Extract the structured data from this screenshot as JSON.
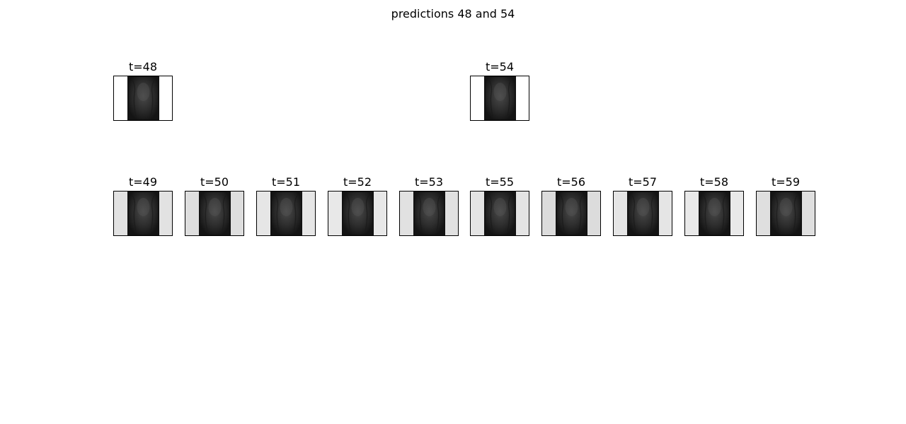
{
  "figure": {
    "title": "predictions 48 and 54"
  },
  "top_row": [
    {
      "label": "t=48",
      "background": "#ffffff"
    },
    {
      "label": "t=54",
      "background": "#ffffff"
    }
  ],
  "bottom_row": [
    {
      "label": "t=49",
      "background": "#e2e2e2"
    },
    {
      "label": "t=50",
      "background": "#dedede"
    },
    {
      "label": "t=51",
      "background": "#e6e6e6"
    },
    {
      "label": "t=52",
      "background": "#e8e8e8"
    },
    {
      "label": "t=53",
      "background": "#e1e1e1"
    },
    {
      "label": "t=55",
      "background": "#e4e4e4"
    },
    {
      "label": "t=56",
      "background": "#dcdcdc"
    },
    {
      "label": "t=57",
      "background": "#e5e5e5"
    },
    {
      "label": "t=58",
      "background": "#e9e9e9"
    },
    {
      "label": "t=59",
      "background": "#dfdfdf"
    }
  ]
}
